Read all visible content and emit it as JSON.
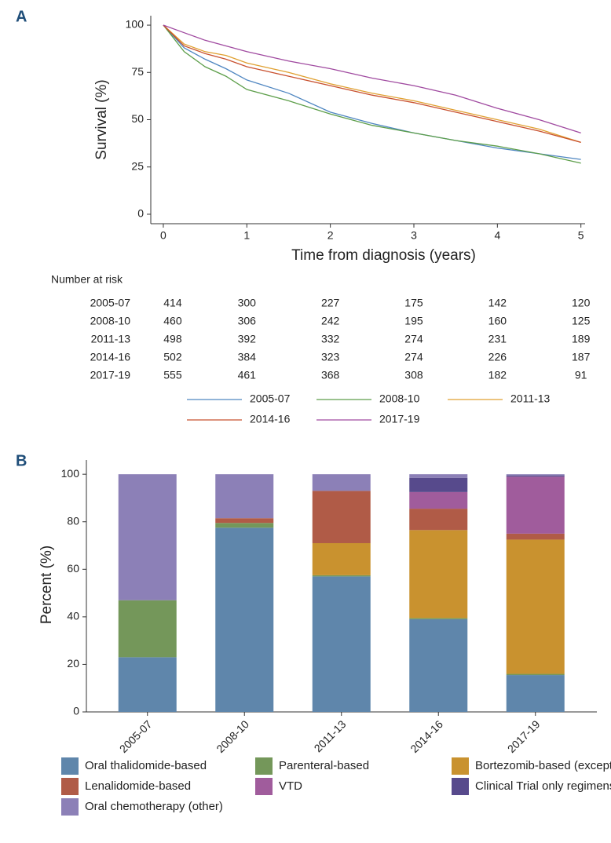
{
  "chart_data": [
    {
      "type": "line",
      "panel": "A",
      "ylabel": "Survival (%)",
      "xlabel": "Time from diagnosis (years)",
      "x": [
        0,
        0.25,
        0.5,
        0.75,
        1,
        1.5,
        2,
        2.5,
        3,
        3.5,
        4,
        4.5,
        5
      ],
      "series": [
        {
          "name": "2005-07",
          "color": "#4f86c1",
          "values": [
            100,
            88,
            82,
            77,
            71,
            64,
            54,
            48,
            43,
            39,
            35,
            32,
            29
          ]
        },
        {
          "name": "2008-10",
          "color": "#5d9e4a",
          "values": [
            100,
            86,
            78,
            73,
            66,
            60,
            53,
            47,
            43,
            39,
            36,
            32,
            27
          ]
        },
        {
          "name": "2011-13",
          "color": "#e0a030",
          "values": [
            100,
            90,
            86,
            84,
            80,
            75,
            69,
            64,
            60,
            55,
            50,
            45,
            38
          ]
        },
        {
          "name": "2014-16",
          "color": "#c8502e",
          "values": [
            100,
            89,
            85,
            82,
            78,
            73,
            68,
            63,
            59,
            54,
            49,
            44,
            38
          ]
        },
        {
          "name": "2017-19",
          "color": "#a04aa0",
          "values": [
            100,
            96,
            92,
            89,
            86,
            81,
            77,
            72,
            68,
            63,
            56,
            50,
            43
          ]
        }
      ],
      "xlim": [
        -0.15,
        5.05
      ],
      "xticks": [
        0,
        1,
        2,
        3,
        4,
        5
      ],
      "ylim": [
        -5,
        105
      ],
      "yticks": [
        0,
        25,
        50,
        75,
        100
      ],
      "grid": false,
      "legend": "bottom",
      "risk_table": {
        "title": "Number at risk",
        "rows": [
          {
            "label": "2005-07",
            "values": [
              414,
              300,
              227,
              175,
              142,
              120
            ]
          },
          {
            "label": "2008-10",
            "values": [
              460,
              306,
              242,
              195,
              160,
              125
            ]
          },
          {
            "label": "2011-13",
            "values": [
              498,
              392,
              332,
              274,
              231,
              189
            ]
          },
          {
            "label": "2014-16",
            "values": [
              502,
              384,
              323,
              274,
              226,
              187
            ]
          },
          {
            "label": "2017-19",
            "values": [
              555,
              461,
              368,
              308,
              182,
              91
            ]
          }
        ]
      }
    },
    {
      "type": "stacked-bar",
      "panel": "B",
      "ylabel": "Percent (%)",
      "categories": [
        "2005-07",
        "2008-10",
        "2011-13",
        "2014-16",
        "2017-19"
      ],
      "series": [
        {
          "name": "Oral thalidomide-based",
          "color": "#5f86ab",
          "values": [
            23,
            77.5,
            57,
            39,
            15.5
          ]
        },
        {
          "name": "Parenteral-based",
          "color": "#74975a",
          "values": [
            24,
            2,
            0.5,
            0.5,
            0.5
          ]
        },
        {
          "name": "Bortezomib-based (except VTD)",
          "color": "#c9922f",
          "values": [
            0,
            0,
            13.5,
            37,
            56.5
          ]
        },
        {
          "name": "Lenalidomide-based",
          "color": "#b05b47",
          "values": [
            0,
            2,
            22,
            9,
            2.5
          ]
        },
        {
          "name": "VTD",
          "color": "#a05c9c",
          "values": [
            0,
            0,
            0,
            7,
            24
          ]
        },
        {
          "name": "Clinical Trial only regimens",
          "color": "#574a8c",
          "values": [
            0,
            0,
            0,
            6,
            0.5
          ]
        },
        {
          "name": "Oral chemotherapy (other)",
          "color": "#8c80b7",
          "values": [
            53,
            18.5,
            7,
            1.5,
            0.5
          ]
        }
      ],
      "ylim": [
        0,
        106
      ],
      "yticks": [
        0,
        20,
        40,
        60,
        80,
        100
      ],
      "grid": false,
      "legend": "bottom"
    }
  ]
}
